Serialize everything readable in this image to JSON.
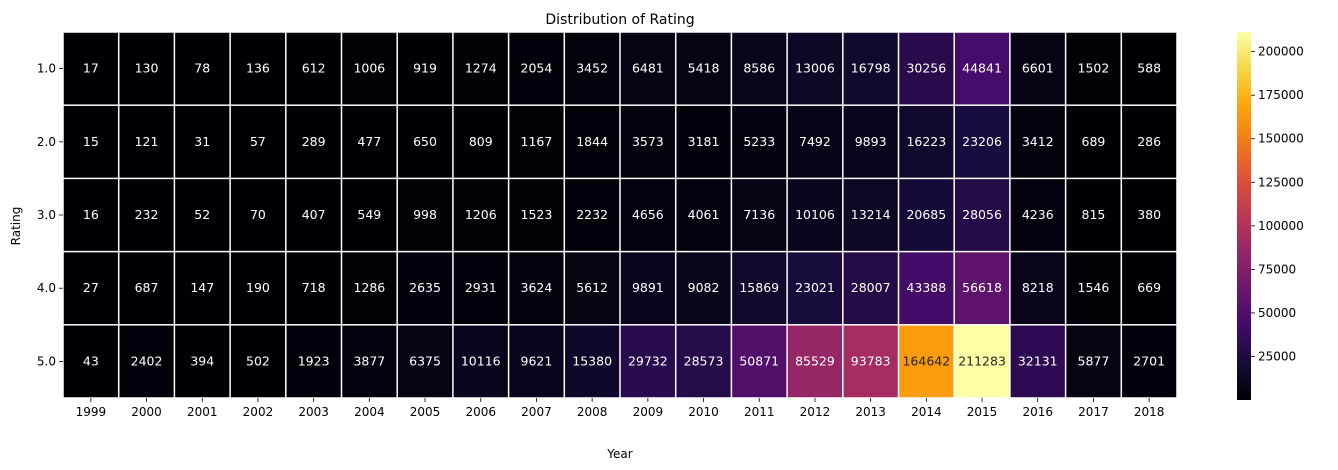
{
  "chart_data": {
    "type": "heatmap",
    "title": "Distribution of Rating",
    "xlabel": "Year",
    "ylabel": "Rating",
    "x": [
      "1999",
      "2000",
      "2001",
      "2002",
      "2003",
      "2004",
      "2005",
      "2006",
      "2007",
      "2008",
      "2009",
      "2010",
      "2011",
      "2012",
      "2013",
      "2014",
      "2015",
      "2016",
      "2017",
      "2018"
    ],
    "y": [
      "1.0",
      "2.0",
      "3.0",
      "4.0",
      "5.0"
    ],
    "values": [
      [
        17,
        130,
        78,
        136,
        612,
        1006,
        919,
        1274,
        2054,
        3452,
        6481,
        5418,
        8586,
        13006,
        16798,
        30256,
        44841,
        6601,
        1502,
        588
      ],
      [
        15,
        121,
        31,
        57,
        289,
        477,
        650,
        809,
        1167,
        1844,
        3573,
        3181,
        5233,
        7492,
        9893,
        16223,
        23206,
        3412,
        689,
        286
      ],
      [
        16,
        232,
        52,
        70,
        407,
        549,
        998,
        1206,
        1523,
        2232,
        4656,
        4061,
        7136,
        10106,
        13214,
        20685,
        28056,
        4236,
        815,
        380
      ],
      [
        27,
        687,
        147,
        190,
        718,
        1286,
        2635,
        2931,
        3624,
        5612,
        9891,
        9082,
        15869,
        23021,
        28007,
        43388,
        56618,
        8218,
        1546,
        669
      ],
      [
        43,
        2402,
        394,
        502,
        1923,
        3877,
        6375,
        10116,
        9621,
        15380,
        29732,
        28573,
        50871,
        85529,
        93783,
        164642,
        211283,
        32131,
        5877,
        2701
      ]
    ],
    "colormap": "inferno",
    "vmin": 15,
    "vmax": 211283,
    "colorbar_ticks": [
      25000,
      50000,
      75000,
      100000,
      125000,
      150000,
      175000,
      200000
    ],
    "cell_separator_color": "#ffffff",
    "annotations": true,
    "grid": false
  }
}
